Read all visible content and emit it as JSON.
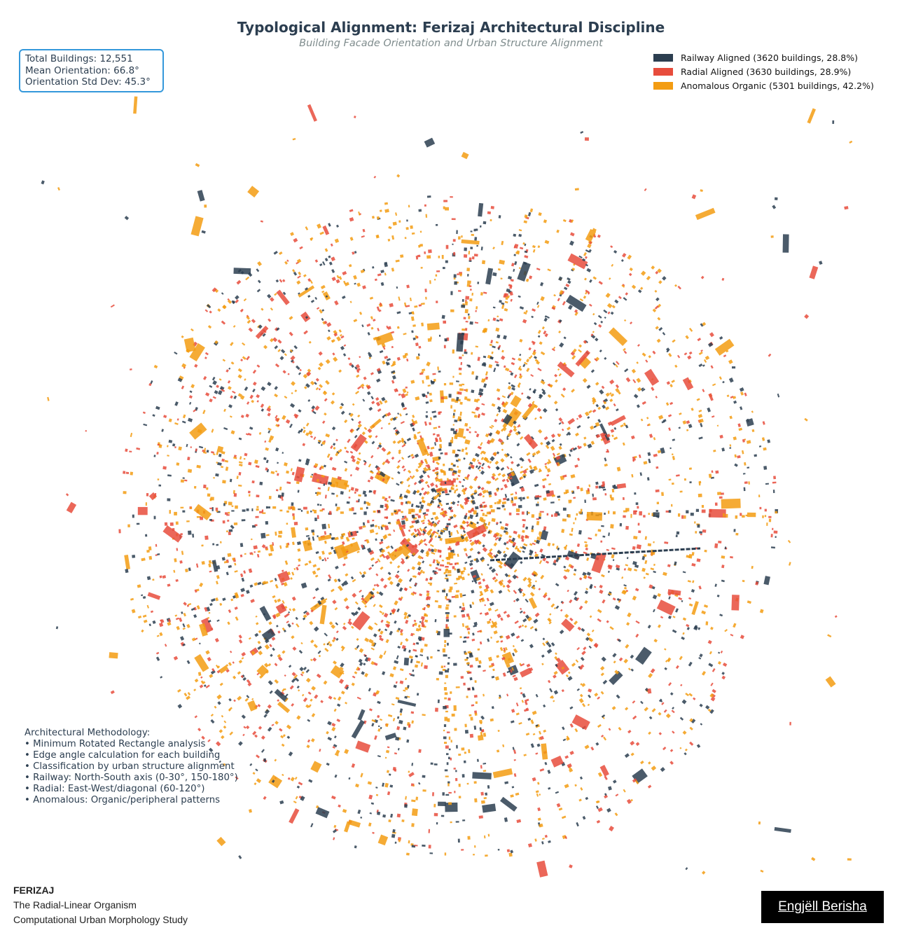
{
  "title": "Typological Alignment: Ferizaj Architectural Discipline",
  "subtitle": "Building Facade Orientation and Urban Structure Alignment",
  "stats": {
    "total": "Total Buildings: 12,551",
    "mean": "Mean Orientation: 66.8°",
    "std": "Orientation Std Dev: 45.3°"
  },
  "legend": [
    {
      "label": "Railway Aligned (3620 buildings, 28.8%)",
      "color": "#2c3e50",
      "count": 3620,
      "share": 28.8
    },
    {
      "label": "Radial Aligned (3630 buildings, 28.9%)",
      "color": "#e74c3c",
      "count": 3630,
      "share": 28.9
    },
    {
      "label": "Anomalous Organic (5301 buildings, 42.2%)",
      "color": "#f39c12",
      "count": 5301,
      "share": 42.2
    }
  ],
  "methodology": {
    "heading": "Architectural Methodology:",
    "items": [
      "• Minimum Rotated Rectangle analysis",
      "• Edge angle calculation for each building",
      "• Classification by urban structure alignment",
      "• Railway: North-South axis (0-30°, 150-180°)",
      "• Radial: East-West/diagonal (60-120°)",
      "• Anomalous: Organic/peripheral patterns"
    ]
  },
  "footer": {
    "brand": "FERIZAJ",
    "line1": "The Radial-Linear Organism",
    "line2": "Computational Urban Morphology Study"
  },
  "signature": "Engjëll Berisha"
}
